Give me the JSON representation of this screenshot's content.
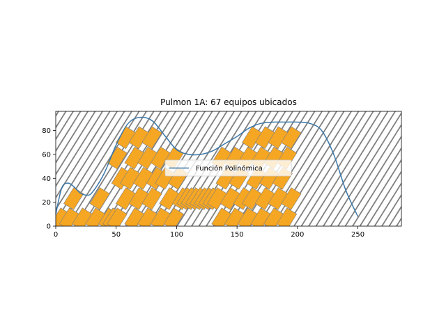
{
  "chart_data": {
    "type": "line",
    "title": "Pulmon 1A: 67 equipos ubicados",
    "xlabel": "",
    "ylabel": "",
    "xlim": [
      0,
      286
    ],
    "ylim": [
      0,
      96
    ],
    "xticks": [
      0,
      50,
      100,
      150,
      200,
      250
    ],
    "yticks": [
      0,
      20,
      40,
      60,
      80
    ],
    "grid": false,
    "legend_position": "center",
    "hatch_color": "#808080",
    "equipment_color": "#f5a623",
    "equipment_edge_color": "#808080",
    "series": [
      {
        "name": "Función Polinómica",
        "color": "#3b77a8",
        "x": [
          0,
          5,
          10,
          15,
          20,
          25,
          30,
          40,
          50,
          60,
          70,
          80,
          90,
          100,
          110,
          120,
          130,
          140,
          150,
          160,
          170,
          180,
          190,
          200,
          210,
          220,
          230,
          240,
          250
        ],
        "y": [
          10,
          32,
          36,
          33,
          28,
          26,
          28,
          44,
          68,
          86,
          91,
          88,
          76,
          64,
          60,
          60,
          63,
          69,
          75,
          82,
          86,
          87,
          87,
          87,
          86,
          80,
          60,
          30,
          8
        ]
      }
    ],
    "equipment": {
      "count": 67,
      "unit_width": 6,
      "unit_length": 27,
      "slope": 1.6
    }
  }
}
